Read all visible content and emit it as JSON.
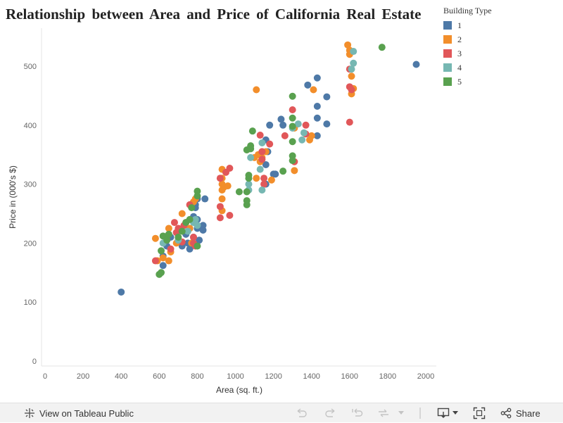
{
  "chart_data": {
    "type": "scatter",
    "title": "Relationship between Area and Price of California Real Estate",
    "xlabel": "Area (sq. ft.)",
    "ylabel": "Price in (000's $)",
    "xlim": [
      0,
      2100
    ],
    "ylim": [
      0,
      560
    ],
    "xticks": [
      0,
      200,
      400,
      600,
      800,
      1000,
      1200,
      1400,
      1600,
      1800,
      2000
    ],
    "yticks": [
      0,
      100,
      200,
      300,
      400,
      500
    ],
    "grid": false,
    "legend": {
      "title": "Building Type",
      "placement": "top-right",
      "entries": [
        {
          "label": "1",
          "color": "#4e79a7"
        },
        {
          "label": "2",
          "color": "#f28e2b"
        },
        {
          "label": "3",
          "color": "#e15759"
        },
        {
          "label": "4",
          "color": "#76b7b2"
        },
        {
          "label": "5",
          "color": "#59a14f"
        }
      ]
    },
    "series": [
      {
        "name": "1",
        "color": "#4e79a7",
        "points": [
          [
            400,
            117
          ],
          [
            620,
            162
          ],
          [
            620,
            178
          ],
          [
            640,
            195
          ],
          [
            660,
            210
          ],
          [
            700,
            205
          ],
          [
            720,
            195
          ],
          [
            740,
            215
          ],
          [
            750,
            200
          ],
          [
            760,
            190
          ],
          [
            760,
            225
          ],
          [
            770,
            240
          ],
          [
            780,
            210
          ],
          [
            780,
            245
          ],
          [
            790,
            260
          ],
          [
            790,
            265
          ],
          [
            800,
            225
          ],
          [
            800,
            240
          ],
          [
            800,
            275
          ],
          [
            810,
            205
          ],
          [
            830,
            230
          ],
          [
            830,
            222
          ],
          [
            840,
            275
          ],
          [
            1160,
            300
          ],
          [
            1160,
            333
          ],
          [
            1170,
            355
          ],
          [
            1160,
            375
          ],
          [
            1180,
            400
          ],
          [
            1240,
            410
          ],
          [
            1250,
            400
          ],
          [
            1200,
            317
          ],
          [
            1210,
            317
          ],
          [
            1380,
            468
          ],
          [
            1430,
            480
          ],
          [
            1430,
            432
          ],
          [
            1430,
            412
          ],
          [
            1430,
            382
          ],
          [
            1480,
            448
          ],
          [
            1480,
            402
          ],
          [
            1950,
            503
          ]
        ]
      },
      {
        "name": "2",
        "color": "#f28e2b",
        "points": [
          [
            580,
            208
          ],
          [
            590,
            170
          ],
          [
            620,
            175
          ],
          [
            650,
            225
          ],
          [
            650,
            170
          ],
          [
            660,
            185
          ],
          [
            690,
            200
          ],
          [
            700,
            205
          ],
          [
            720,
            250
          ],
          [
            740,
            235
          ],
          [
            760,
            225
          ],
          [
            770,
            200
          ],
          [
            780,
            270
          ],
          [
            790,
            275
          ],
          [
            930,
            325
          ],
          [
            930,
            310
          ],
          [
            930,
            300
          ],
          [
            930,
            290
          ],
          [
            930,
            275
          ],
          [
            930,
            255
          ],
          [
            940,
            295
          ],
          [
            960,
            297
          ],
          [
            1110,
            460
          ],
          [
            1100,
            345
          ],
          [
            1120,
            350
          ],
          [
            1110,
            310
          ],
          [
            1130,
            338
          ],
          [
            1140,
            345
          ],
          [
            1160,
            355
          ],
          [
            1190,
            307
          ],
          [
            1310,
            323
          ],
          [
            1310,
            395
          ],
          [
            1390,
            375
          ],
          [
            1400,
            382
          ],
          [
            1410,
            460
          ],
          [
            1590,
            536
          ],
          [
            1600,
            527
          ],
          [
            1600,
            520
          ],
          [
            1610,
            483
          ],
          [
            1610,
            453
          ],
          [
            1620,
            462
          ]
        ]
      },
      {
        "name": "3",
        "color": "#e15759",
        "points": [
          [
            580,
            170
          ],
          [
            640,
            205
          ],
          [
            660,
            190
          ],
          [
            680,
            235
          ],
          [
            690,
            218
          ],
          [
            700,
            225
          ],
          [
            720,
            202
          ],
          [
            730,
            230
          ],
          [
            760,
            265
          ],
          [
            780,
            200
          ],
          [
            780,
            210
          ],
          [
            790,
            195
          ],
          [
            920,
            310
          ],
          [
            920,
            262
          ],
          [
            920,
            243
          ],
          [
            950,
            320
          ],
          [
            970,
            327
          ],
          [
            970,
            247
          ],
          [
            1130,
            383
          ],
          [
            1140,
            355
          ],
          [
            1140,
            355
          ],
          [
            1140,
            342
          ],
          [
            1150,
            310
          ],
          [
            1150,
            300
          ],
          [
            1180,
            368
          ],
          [
            1260,
            382
          ],
          [
            1300,
            426
          ],
          [
            1310,
            338
          ],
          [
            1370,
            385
          ],
          [
            1370,
            400
          ],
          [
            1600,
            495
          ],
          [
            1600,
            465
          ],
          [
            1600,
            405
          ],
          [
            1610,
            460
          ]
        ]
      },
      {
        "name": "4",
        "color": "#76b7b2",
        "points": [
          [
            620,
            200
          ],
          [
            700,
            205
          ],
          [
            750,
            220
          ],
          [
            780,
            235
          ],
          [
            790,
            240
          ],
          [
            800,
            230
          ],
          [
            1070,
            290
          ],
          [
            1070,
            300
          ],
          [
            1080,
            345
          ],
          [
            1130,
            325
          ],
          [
            1140,
            290
          ],
          [
            1140,
            370
          ],
          [
            1300,
            395
          ],
          [
            1330,
            402
          ],
          [
            1350,
            375
          ],
          [
            1360,
            387
          ],
          [
            1620,
            525
          ],
          [
            1620,
            505
          ],
          [
            1610,
            495
          ]
        ]
      },
      {
        "name": "5",
        "color": "#59a14f",
        "points": [
          [
            600,
            147
          ],
          [
            610,
            150
          ],
          [
            610,
            187
          ],
          [
            620,
            212
          ],
          [
            640,
            205
          ],
          [
            650,
            215
          ],
          [
            700,
            210
          ],
          [
            720,
            220
          ],
          [
            740,
            235
          ],
          [
            760,
            240
          ],
          [
            770,
            260
          ],
          [
            800,
            195
          ],
          [
            800,
            288
          ],
          [
            800,
            280
          ],
          [
            1020,
            287
          ],
          [
            1060,
            265
          ],
          [
            1060,
            272
          ],
          [
            1060,
            287
          ],
          [
            1070,
            310
          ],
          [
            1070,
            315
          ],
          [
            1060,
            358
          ],
          [
            1080,
            360
          ],
          [
            1080,
            365
          ],
          [
            1090,
            390
          ],
          [
            1250,
            322
          ],
          [
            1300,
            449
          ],
          [
            1300,
            412
          ],
          [
            1300,
            398
          ],
          [
            1300,
            372
          ],
          [
            1300,
            348
          ],
          [
            1300,
            340
          ],
          [
            1770,
            532
          ]
        ]
      }
    ]
  },
  "toolbar": {
    "view_label": "View on Tableau Public",
    "share_label": "Share"
  },
  "icons": {
    "tableau": "tableau-logo-icon",
    "undo": "undo-icon",
    "redo": "redo-icon",
    "revert": "revert-icon",
    "refresh": "refresh-icon",
    "download": "download-icon",
    "fullscreen": "fullscreen-icon",
    "share": "share-icon"
  }
}
